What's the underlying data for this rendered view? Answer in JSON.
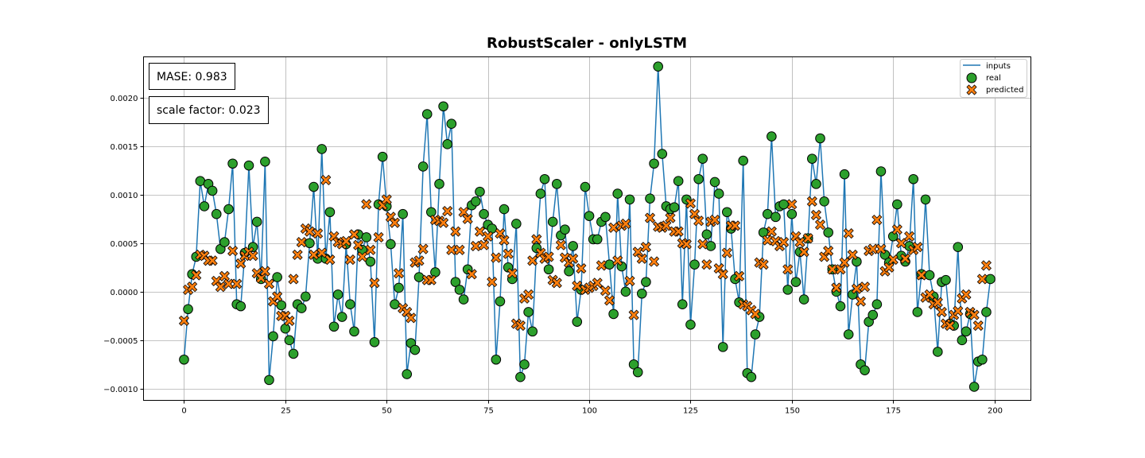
{
  "chart_data": {
    "type": "line",
    "title": "RobustScaler - onlyLSTM",
    "xlabel": "",
    "ylabel": "",
    "xlim": [
      -10,
      209
    ],
    "ylim": [
      -0.00112,
      0.00242
    ],
    "xticks": [
      0,
      25,
      50,
      75,
      100,
      125,
      150,
      175,
      200
    ],
    "yticks": [
      -0.001,
      -0.0005,
      0.0,
      0.0005,
      0.001,
      0.0015,
      0.002
    ],
    "ytick_labels": [
      "−0.0010",
      "−0.0005",
      "0.0000",
      "0.0005",
      "0.0010",
      "0.0015",
      "0.0020"
    ],
    "grid": true,
    "legend_position": "top-right",
    "annotations": [
      {
        "name": "mase",
        "text": "MASE: 0.983"
      },
      {
        "name": "scale",
        "text": "scale factor: 0.023"
      }
    ],
    "series": [
      {
        "name": "inputs",
        "kind": "line",
        "color": "#1f77b4",
        "values": [
          -0.0007,
          -0.00018,
          0.00018,
          0.00036,
          0.00114,
          0.00088,
          0.00111,
          0.00104,
          0.0008,
          0.00044,
          0.00051,
          0.00085,
          0.00132,
          -0.00013,
          -0.00015,
          0.0004,
          0.0013,
          0.00046,
          0.00072,
          0.00013,
          0.00134,
          -0.00091,
          -0.00046,
          0.00015,
          -0.00014,
          -0.00038,
          -0.0005,
          -0.00064,
          -0.00013,
          -0.00017,
          -5e-05,
          0.0005,
          0.00108,
          0.00034,
          0.00147,
          0.00034,
          0.00082,
          -0.00036,
          -3e-05,
          -0.00026,
          0.00049,
          -0.00013,
          -0.00041,
          0.00059,
          0.00043,
          0.00056,
          0.00031,
          -0.00052,
          0.0009,
          0.00139,
          0.00088,
          0.00049,
          -0.00013,
          4e-05,
          0.0008,
          -0.00085,
          -0.00053,
          -0.0006,
          0.00015,
          0.00129,
          0.00183,
          0.00082,
          0.0002,
          0.00111,
          0.00191,
          0.00152,
          0.00173,
          0.0001,
          2e-05,
          -8e-05,
          0.00023,
          0.00089,
          0.00093,
          0.00103,
          0.0008,
          0.00069,
          0.00065,
          -0.0007,
          -0.0001,
          0.00085,
          0.00025,
          0.00013,
          0.0007,
          -0.00088,
          -0.00075,
          -0.00021,
          -0.00041,
          0.00045,
          0.00101,
          0.00116,
          0.00023,
          0.00072,
          0.00111,
          0.00058,
          0.00064,
          0.00021,
          0.00047,
          -0.00031,
          2e-05,
          0.00108,
          0.00078,
          0.00054,
          0.00054,
          0.00072,
          0.00077,
          0.00028,
          -0.00023,
          0.00101,
          0.00026,
          0.0,
          0.00095,
          -0.00075,
          -0.00083,
          -2e-05,
          0.0001,
          0.00096,
          0.00132,
          0.00232,
          0.00142,
          0.00088,
          0.00085,
          0.00087,
          0.00114,
          -0.00013,
          0.00095,
          -0.00034,
          0.00028,
          0.00116,
          0.00137,
          0.00059,
          0.00047,
          0.00113,
          0.00101,
          -0.00057,
          0.00082,
          0.00065,
          0.00013,
          -0.00011,
          0.00135,
          -0.00084,
          -0.00088,
          -0.00044,
          -0.00026,
          0.00061,
          0.0008,
          0.0016,
          0.00077,
          0.00088,
          0.0009,
          2e-05,
          0.0008,
          0.0001,
          0.00041,
          -8e-05,
          0.00055,
          0.00137,
          0.00111,
          0.00158,
          0.00093,
          0.00061,
          0.00023,
          0.0,
          -0.00015,
          0.00121,
          -0.00044,
          -3e-05,
          0.00031,
          -0.00075,
          -0.00081,
          -0.00031,
          -0.00024,
          -0.00013,
          0.00124,
          0.00038,
          0.0003,
          0.00057,
          0.0009,
          0.00037,
          0.00031,
          0.00047,
          0.00116,
          -0.00021,
          0.00018,
          0.00095,
          0.00017,
          -5e-05,
          -0.00062,
          0.0001,
          0.00012,
          -0.00033,
          -0.00035,
          0.00046,
          -0.0005,
          -0.00041,
          -0.00023,
          -0.00098,
          -0.00072,
          -0.0007,
          -0.00021,
          0.00013
        ]
      },
      {
        "name": "real",
        "kind": "marker",
        "marker": "circle",
        "color": "#2ca02c",
        "values": [
          -0.0007,
          -0.00018,
          0.00018,
          0.00036,
          0.00114,
          0.00088,
          0.00111,
          0.00104,
          0.0008,
          0.00044,
          0.00051,
          0.00085,
          0.00132,
          -0.00013,
          -0.00015,
          0.0004,
          0.0013,
          0.00046,
          0.00072,
          0.00013,
          0.00134,
          -0.00091,
          -0.00046,
          0.00015,
          -0.00014,
          -0.00038,
          -0.0005,
          -0.00064,
          -0.00013,
          -0.00017,
          -5e-05,
          0.0005,
          0.00108,
          0.00034,
          0.00147,
          0.00034,
          0.00082,
          -0.00036,
          -3e-05,
          -0.00026,
          0.00049,
          -0.00013,
          -0.00041,
          0.00059,
          0.00043,
          0.00056,
          0.00031,
          -0.00052,
          0.0009,
          0.00139,
          0.00088,
          0.00049,
          -0.00013,
          4e-05,
          0.0008,
          -0.00085,
          -0.00053,
          -0.0006,
          0.00015,
          0.00129,
          0.00183,
          0.00082,
          0.0002,
          0.00111,
          0.00191,
          0.00152,
          0.00173,
          0.0001,
          2e-05,
          -8e-05,
          0.00023,
          0.00089,
          0.00093,
          0.00103,
          0.0008,
          0.00069,
          0.00065,
          -0.0007,
          -0.0001,
          0.00085,
          0.00025,
          0.00013,
          0.0007,
          -0.00088,
          -0.00075,
          -0.00021,
          -0.00041,
          0.00045,
          0.00101,
          0.00116,
          0.00023,
          0.00072,
          0.00111,
          0.00058,
          0.00064,
          0.00021,
          0.00047,
          -0.00031,
          2e-05,
          0.00108,
          0.00078,
          0.00054,
          0.00054,
          0.00072,
          0.00077,
          0.00028,
          -0.00023,
          0.00101,
          0.00026,
          0.0,
          0.00095,
          -0.00075,
          -0.00083,
          -2e-05,
          0.0001,
          0.00096,
          0.00132,
          0.00232,
          0.00142,
          0.00088,
          0.00085,
          0.00087,
          0.00114,
          -0.00013,
          0.00095,
          -0.00034,
          0.00028,
          0.00116,
          0.00137,
          0.00059,
          0.00047,
          0.00113,
          0.00101,
          -0.00057,
          0.00082,
          0.00065,
          0.00013,
          -0.00011,
          0.00135,
          -0.00084,
          -0.00088,
          -0.00044,
          -0.00026,
          0.00061,
          0.0008,
          0.0016,
          0.00077,
          0.00088,
          0.0009,
          2e-05,
          0.0008,
          0.0001,
          0.00041,
          -8e-05,
          0.00055,
          0.00137,
          0.00111,
          0.00158,
          0.00093,
          0.00061,
          0.00023,
          0.0,
          -0.00015,
          0.00121,
          -0.00044,
          -3e-05,
          0.00031,
          -0.00075,
          -0.00081,
          -0.00031,
          -0.00024,
          -0.00013,
          0.00124,
          0.00038,
          0.0003,
          0.00057,
          0.0009,
          0.00037,
          0.00031,
          0.00047,
          0.00116,
          -0.00021,
          0.00018,
          0.00095,
          0.00017,
          -5e-05,
          -0.00062,
          0.0001,
          0.00012,
          -0.00033,
          -0.00035,
          0.00046,
          -0.0005,
          -0.00041,
          -0.00023,
          -0.00098,
          -0.00072,
          -0.0007,
          -0.00021,
          0.00013
        ]
      },
      {
        "name": "predicted",
        "kind": "marker",
        "marker": "x",
        "color": "#ff7f0e",
        "values": [
          -0.0003,
          2e-05,
          5e-05,
          0.00017,
          0.00038,
          0.00037,
          0.00032,
          0.00032,
          0.00011,
          5e-05,
          0.00016,
          8e-05,
          0.00042,
          8e-05,
          0.00029,
          0.00037,
          0.00041,
          0.00037,
          0.00019,
          0.00014,
          0.00021,
          8e-05,
          -0.0001,
          -5e-05,
          -0.00025,
          -0.00025,
          -0.0003,
          0.00013,
          0.00038,
          0.00051,
          0.00065,
          0.00062,
          0.00038,
          0.0006,
          0.0004,
          0.00115,
          0.00033,
          0.00057,
          0.00051,
          0.00049,
          0.00052,
          0.00033,
          0.00059,
          0.00048,
          0.00036,
          0.0009,
          0.00043,
          9e-05,
          0.00056,
          0.00089,
          0.00095,
          0.00077,
          0.00071,
          0.00019,
          -0.00017,
          -0.00021,
          -0.00027,
          0.0003,
          0.00032,
          0.00044,
          0.00012,
          0.00012,
          0.00074,
          0.00073,
          0.00071,
          0.00083,
          0.00043,
          0.00062,
          0.00043,
          0.00082,
          0.00075,
          0.00018,
          0.00047,
          0.00062,
          0.00048,
          0.00057,
          0.0001,
          0.00035,
          0.0006,
          0.00053,
          0.00039,
          0.00019,
          -0.00033,
          -0.00035,
          -7e-05,
          -3e-05,
          0.00032,
          0.00054,
          0.0004,
          0.00034,
          0.00036,
          0.00012,
          9e-05,
          0.00048,
          0.00035,
          0.0003,
          0.00034,
          6e-05,
          0.00024,
          2e-05,
          4e-05,
          6e-05,
          9e-05,
          0.00027,
          1e-05,
          -9e-05,
          0.00066,
          0.00032,
          0.00068,
          0.0007,
          0.00011,
          -0.00024,
          0.00041,
          0.00034,
          0.00046,
          0.00076,
          0.00031,
          0.00067,
          0.00066,
          0.00068,
          0.00076,
          0.00062,
          0.00062,
          0.0005,
          0.00049,
          0.00091,
          0.0008,
          0.00073,
          0.00049,
          0.00028,
          0.00072,
          0.00074,
          0.00024,
          0.00018,
          0.0004,
          0.00068,
          0.00068,
          0.00016,
          -0.00013,
          -0.00015,
          -0.00019,
          -0.00023,
          0.0003,
          0.00028,
          0.00053,
          0.00062,
          0.00052,
          0.00047,
          0.00051,
          0.00023,
          0.0009,
          0.00057,
          0.00051,
          0.00041,
          0.00055,
          0.00093,
          0.00079,
          0.00069,
          0.00036,
          0.00042,
          0.00023,
          4e-05,
          0.00023,
          0.0003,
          0.0006,
          0.00038,
          3e-05,
          -0.0001,
          5e-05,
          0.00042,
          0.00044,
          0.00074,
          0.00044,
          0.00021,
          0.00025,
          0.00033,
          0.00064,
          0.0005,
          0.00034,
          0.00057,
          0.00043,
          0.00046,
          0.00017,
          -6e-05,
          -3e-05,
          -0.00013,
          -0.00011,
          -0.00021,
          -0.00033,
          -0.00035,
          -0.00024,
          -0.0002,
          -7e-05,
          -3e-05,
          -0.00021,
          -0.00024,
          -0.00035,
          0.00013,
          0.00027
        ]
      }
    ]
  }
}
